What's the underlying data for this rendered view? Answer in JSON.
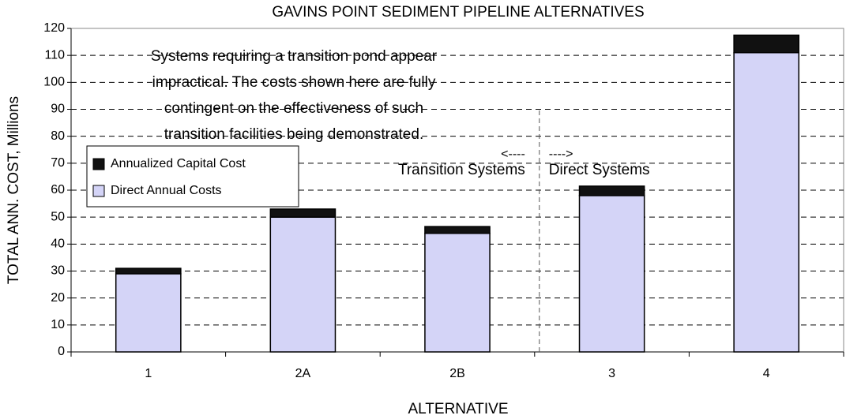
{
  "chart_data": {
    "type": "stacked_bar",
    "title": "GAVINS POINT SEDIMENT PIPELINE ALTERNATIVES",
    "xlabel": "ALTERNATIVE",
    "ylabel": "TOTAL ANN. COST, Millions",
    "categories": [
      "1",
      "2A",
      "2B",
      "3",
      "4"
    ],
    "series": [
      {
        "name": "Direct Annual Costs",
        "color": "#d4d4f7",
        "values": [
          29,
          50,
          44,
          58,
          111
        ]
      },
      {
        "name": "Annualized Capital Cost",
        "color": "#111111",
        "values": [
          2,
          3,
          2.5,
          3.5,
          6.5
        ]
      }
    ],
    "ylim": [
      0,
      120
    ],
    "yticks": [
      0,
      10,
      20,
      30,
      40,
      50,
      60,
      70,
      80,
      90,
      100,
      110,
      120
    ],
    "grid": true,
    "legend": "upper left",
    "note": [
      "Systems requiring a transition pond appear",
      "impractical.  The costs shown here are fully",
      "contingent on the effectiveness of such",
      "transition facilities being demonstrated."
    ],
    "left_arrow": "<----",
    "left_group": "Transition Systems",
    "right_arrow": "---->",
    "right_group": "Direct Systems"
  }
}
